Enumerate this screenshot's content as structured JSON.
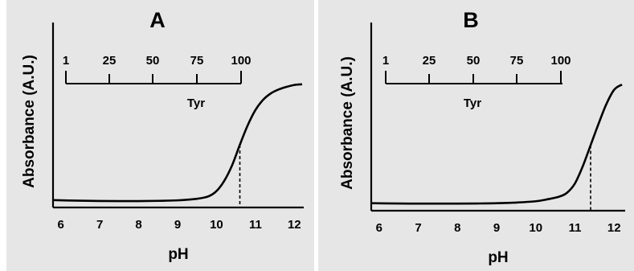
{
  "chart_data": [
    {
      "type": "line",
      "title": "A",
      "xlabel": "pH",
      "ylabel": "Absorbance (A.U.)",
      "xlim": [
        5.8,
        12.2
      ],
      "ylim": [
        0,
        1
      ],
      "xticks": [
        6,
        7,
        8,
        9,
        10,
        11,
        12
      ],
      "grid": false,
      "series": [
        {
          "x": [
            5.8,
            6.5,
            7.0,
            7.5,
            8.0,
            8.5,
            9.0,
            9.5,
            9.8,
            10.0,
            10.2,
            10.4,
            10.6,
            10.8,
            11.0,
            11.2,
            11.4,
            11.6,
            11.8,
            12.0,
            12.2
          ],
          "values": [
            0.02,
            0.015,
            0.013,
            0.012,
            0.012,
            0.014,
            0.018,
            0.03,
            0.05,
            0.09,
            0.17,
            0.29,
            0.45,
            0.6,
            0.72,
            0.8,
            0.85,
            0.88,
            0.9,
            0.915,
            0.92
          ]
        }
      ],
      "marker": {
        "x": 10.6,
        "y": 0.45
      },
      "inset_scale": {
        "ticks": [
          "1",
          "25",
          "50",
          "75",
          "100"
        ],
        "label": "Tyr"
      }
    },
    {
      "type": "line",
      "title": "B",
      "xlabel": "pH",
      "ylabel": "Absorbance (A.U.)",
      "xlim": [
        5.8,
        12.2
      ],
      "ylim": [
        0,
        1
      ],
      "xticks": [
        6,
        7,
        8,
        9,
        10,
        11,
        12
      ],
      "grid": false,
      "series": [
        {
          "x": [
            5.8,
            6.5,
            7.0,
            7.5,
            8.0,
            8.5,
            9.0,
            9.5,
            10.0,
            10.3,
            10.6,
            10.8,
            11.0,
            11.2,
            11.4,
            11.6,
            11.8,
            12.0,
            12.2
          ],
          "values": [
            0.02,
            0.018,
            0.017,
            0.017,
            0.017,
            0.018,
            0.02,
            0.025,
            0.035,
            0.05,
            0.07,
            0.1,
            0.17,
            0.3,
            0.46,
            0.62,
            0.77,
            0.88,
            0.92
          ]
        }
      ],
      "marker": {
        "x": 11.4,
        "y": 0.46
      },
      "inset_scale": {
        "ticks": [
          "1",
          "25",
          "50",
          "75",
          "100"
        ],
        "label": "Tyr"
      }
    }
  ]
}
